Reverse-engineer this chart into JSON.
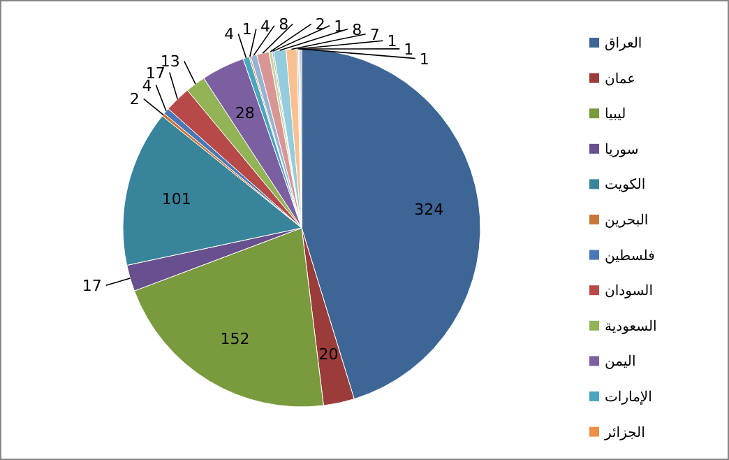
{
  "chart_data": {
    "type": "pie",
    "categories": [
      "العراق",
      "عمان",
      "ليبيا",
      "سوريا",
      "الكويت",
      "البحرين",
      "فلسطين",
      "السودان",
      "السعودية",
      "اليمن",
      "الإمارات",
      "الجزائر",
      null,
      null,
      null,
      null,
      null,
      null,
      null,
      null,
      null
    ],
    "values": [
      324,
      20,
      152,
      17,
      101,
      2,
      4,
      17,
      13,
      28,
      4,
      1,
      4,
      8,
      2,
      1,
      8,
      7,
      1,
      1,
      1
    ],
    "colors": [
      "#3d6595",
      "#993c3a",
      "#7a9a3e",
      "#67508d",
      "#38849a",
      "#c6773a",
      "#4a78b6",
      "#b74a48",
      "#92b456",
      "#7b5fa0",
      "#48a6be",
      "#ec8f47",
      "#95b3d7",
      "#d99694",
      "#c3d69b",
      "#b3a2c7",
      "#93cddd",
      "#fac090",
      "#bfbfbf",
      "#d9d9d9",
      "#a6a6a6"
    ],
    "data_labels": true,
    "legend": "right"
  }
}
